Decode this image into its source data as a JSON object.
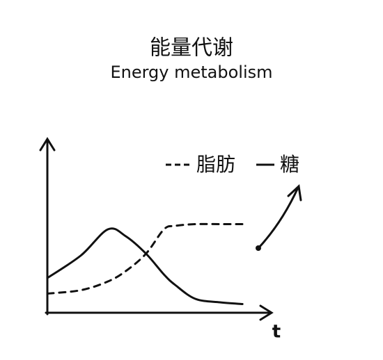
{
  "chart_data": {
    "type": "line",
    "title": "能量代谢",
    "subtitle": "Energy metabolism",
    "x_label": "t",
    "x": [
      0,
      1.5,
      2.7,
      3.5,
      4.4,
      5.2,
      5.7,
      6.6,
      7.7,
      8.7
    ],
    "series": [
      {
        "name": "脂肪",
        "color": "#111111",
        "dash": true,
        "values": [
          1.1,
          1.3,
          1.8,
          2.4,
          3.4,
          4.8,
          5.0,
          5.1,
          5.1,
          5.1
        ]
      },
      {
        "name": "糖",
        "color": "#111111",
        "dash": false,
        "values": [
          2,
          3.3,
          4.8,
          4.4,
          3.4,
          2.2,
          1.6,
          0.8,
          0.6,
          0.5
        ]
      }
    ],
    "xlim": [
      0,
      10
    ],
    "ylim": [
      0,
      10
    ],
    "grid": false
  }
}
